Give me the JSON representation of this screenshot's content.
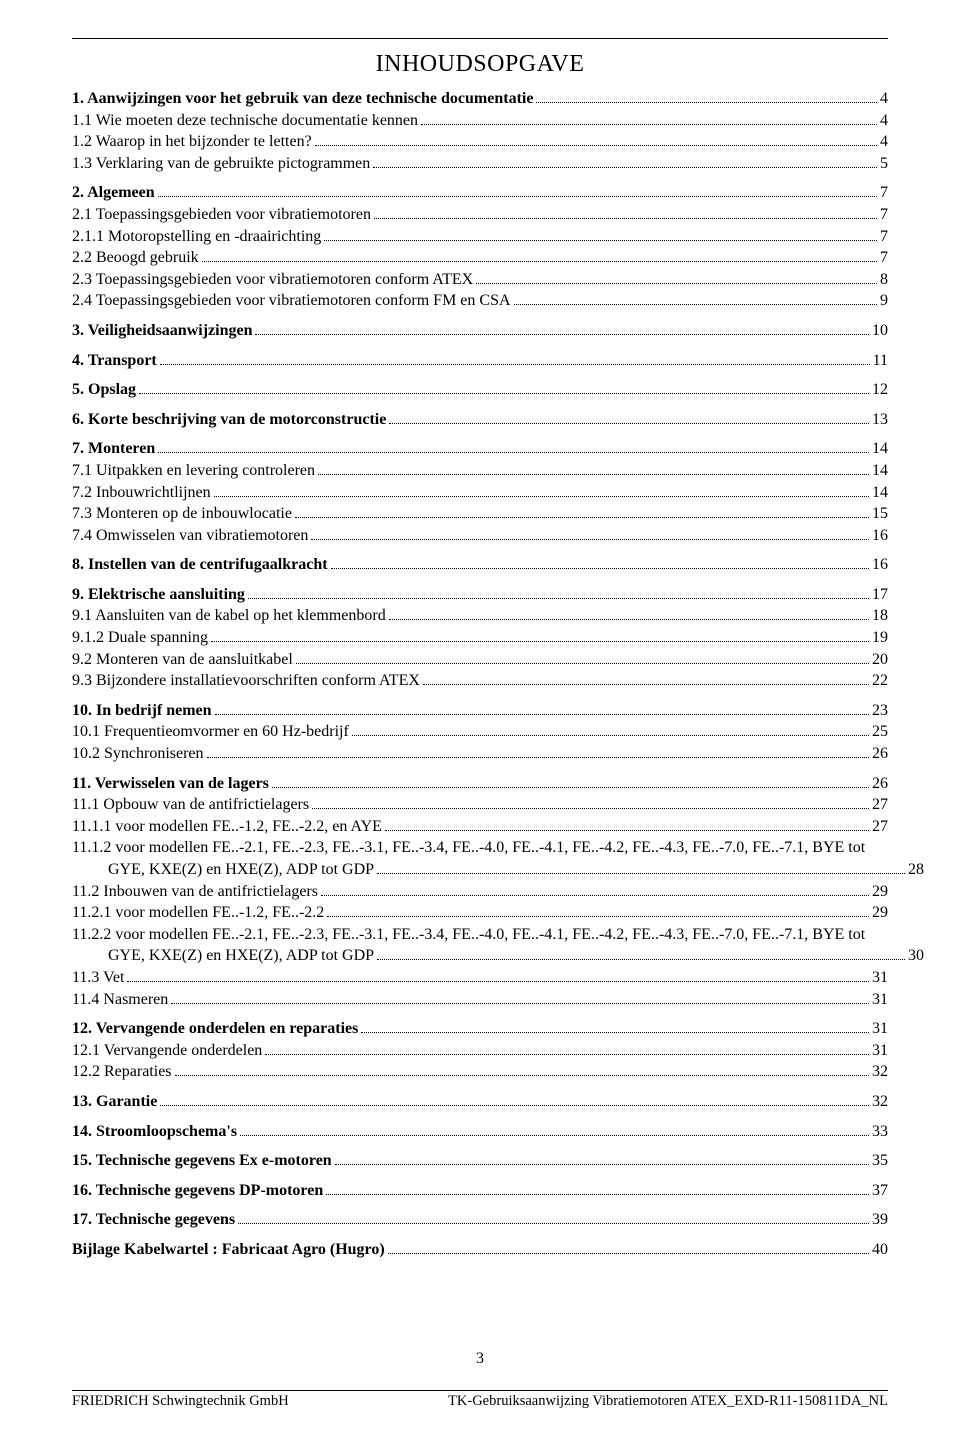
{
  "title": "INHOUDSOPGAVE",
  "page_number": "3",
  "footer_left": "FRIEDRICH Schwingtechnik GmbH",
  "footer_right": "TK-Gebruiksaanwijzing Vibratiemotoren ATEX_EXD-R11-150811DA_NL",
  "entries": [
    {
      "label": "1. Aanwijzingen voor het gebruik van deze technische documentatie",
      "page": "4",
      "bold": true,
      "indent": 0,
      "gap": false
    },
    {
      "label": "1.1 Wie moeten deze technische documentatie kennen",
      "page": "4",
      "bold": false,
      "indent": 0,
      "gap": false
    },
    {
      "label": "1.2 Waarop in het bijzonder te letten?",
      "page": "4",
      "bold": false,
      "indent": 0,
      "gap": false
    },
    {
      "label": "1.3 Verklaring van de gebruikte pictogrammen",
      "page": "5",
      "bold": false,
      "indent": 0,
      "gap": false
    },
    {
      "label": "2. Algemeen",
      "page": "7",
      "bold": true,
      "indent": 0,
      "gap": true
    },
    {
      "label": "2.1 Toepassingsgebieden voor vibratiemotoren",
      "page": "7",
      "bold": false,
      "indent": 0,
      "gap": false
    },
    {
      "label": "2.1.1 Motoropstelling en -draairichting",
      "page": "7",
      "bold": false,
      "indent": 0,
      "gap": false
    },
    {
      "label": "2.2 Beoogd gebruik",
      "page": "7",
      "bold": false,
      "indent": 0,
      "gap": false
    },
    {
      "label": "2.3 Toepassingsgebieden voor vibratiemotoren conform ATEX",
      "page": "8",
      "bold": false,
      "indent": 0,
      "gap": false
    },
    {
      "label": "2.4 Toepassingsgebieden voor vibratiemotoren conform FM en CSA",
      "page": "9",
      "bold": false,
      "indent": 0,
      "gap": false
    },
    {
      "label": "3. Veiligheidsaanwijzingen",
      "page": "10",
      "bold": true,
      "indent": 0,
      "gap": true
    },
    {
      "label": "4. Transport",
      "page": "11",
      "bold": true,
      "indent": 0,
      "gap": true
    },
    {
      "label": "5. Opslag",
      "page": "12",
      "bold": true,
      "indent": 0,
      "gap": true
    },
    {
      "label": "6. Korte beschrijving van de motorconstructie",
      "page": "13",
      "bold": true,
      "indent": 0,
      "gap": true
    },
    {
      "label": "7. Monteren",
      "page": "14",
      "bold": true,
      "indent": 0,
      "gap": true
    },
    {
      "label": "7.1 Uitpakken en levering controleren",
      "page": "14",
      "bold": false,
      "indent": 0,
      "gap": false
    },
    {
      "label": "7.2 Inbouwrichtlijnen",
      "page": "14",
      "bold": false,
      "indent": 0,
      "gap": false
    },
    {
      "label": "7.3 Monteren op de inbouwlocatie",
      "page": "15",
      "bold": false,
      "indent": 0,
      "gap": false
    },
    {
      "label": "7.4 Omwisselen van vibratiemotoren",
      "page": "16",
      "bold": false,
      "indent": 0,
      "gap": false
    },
    {
      "label": "8. Instellen van de centrifugaalkracht",
      "page": "16",
      "bold": true,
      "indent": 0,
      "gap": true
    },
    {
      "label": "9. Elektrische aansluiting",
      "page": "17",
      "bold": true,
      "indent": 0,
      "gap": true
    },
    {
      "label": "9.1 Aansluiten van de kabel op het klemmenbord",
      "page": "18",
      "bold": false,
      "indent": 0,
      "gap": false
    },
    {
      "label": "9.1.2 Duale spanning",
      "page": "19",
      "bold": false,
      "indent": 0,
      "gap": false
    },
    {
      "label": "9.2 Monteren van de aansluitkabel",
      "page": "20",
      "bold": false,
      "indent": 0,
      "gap": false
    },
    {
      "label": "9.3 Bijzondere installatievoorschriften conform ATEX",
      "page": "22",
      "bold": false,
      "indent": 0,
      "gap": false
    },
    {
      "label": "10. In bedrijf nemen",
      "page": "23",
      "bold": true,
      "indent": 0,
      "gap": true
    },
    {
      "label": "10.1 Frequentieomvormer en 60 Hz-bedrijf",
      "page": "25",
      "bold": false,
      "indent": 0,
      "gap": false
    },
    {
      "label": "10.2   Synchroniseren",
      "page": "26",
      "bold": false,
      "indent": 0,
      "gap": false
    },
    {
      "label": "11. Verwisselen van de lagers",
      "page": "26",
      "bold": true,
      "indent": 0,
      "gap": true
    },
    {
      "label": "11.1 Opbouw van de antifrictielagers",
      "page": "27",
      "bold": false,
      "indent": 0,
      "gap": false
    },
    {
      "label": "11.1.1 voor modellen FE..-1.2, FE..-2.2, en AYE",
      "page": "27",
      "bold": false,
      "indent": 0,
      "gap": false
    },
    {
      "label": "11.1.2 voor modellen FE..-2.1, FE..-2.3, FE..-3.1, FE..-3.4, FE..-4.0, FE..-4.1, FE..-4.2, FE..-4.3, FE..-7.0, FE..-7.1, BYE tot",
      "wrap": "GYE, KXE(Z) en HXE(Z), ADP tot GDP",
      "page": "28",
      "bold": false,
      "indent": 0,
      "gap": false
    },
    {
      "label": "11.2 Inbouwen van de antifrictielagers",
      "page": "29",
      "bold": false,
      "indent": 0,
      "gap": false
    },
    {
      "label": "11.2.1 voor modellen FE..-1.2, FE..-2.2",
      "page": "29",
      "bold": false,
      "indent": 0,
      "gap": false
    },
    {
      "label": "11.2.2 voor modellen FE..-2.1, FE..-2.3, FE..-3.1, FE..-3.4, FE..-4.0, FE..-4.1, FE..-4.2, FE..-4.3, FE..-7.0, FE..-7.1, BYE tot",
      "wrap": "GYE, KXE(Z) en HXE(Z), ADP tot GDP",
      "page": "30",
      "bold": false,
      "indent": 0,
      "gap": false
    },
    {
      "label": "11.3 Vet",
      "page": "31",
      "bold": false,
      "indent": 0,
      "gap": false
    },
    {
      "label": "11.4 Nasmeren",
      "page": "31",
      "bold": false,
      "indent": 0,
      "gap": false
    },
    {
      "label": "12. Vervangende onderdelen en reparaties",
      "page": "31",
      "bold": true,
      "indent": 0,
      "gap": true
    },
    {
      "label": "12.1 Vervangende onderdelen",
      "page": "31",
      "bold": false,
      "indent": 0,
      "gap": false
    },
    {
      "label": "12.2 Reparaties",
      "page": "32",
      "bold": false,
      "indent": 0,
      "gap": false
    },
    {
      "label": "13. Garantie",
      "page": "32",
      "bold": true,
      "indent": 0,
      "gap": true
    },
    {
      "label": "14. Stroomloopschema's",
      "page": "33",
      "bold": true,
      "indent": 0,
      "gap": true
    },
    {
      "label": "15. Technische gegevens Ex e-motoren",
      "page": "35",
      "bold": true,
      "indent": 0,
      "gap": true
    },
    {
      "label": "16. Technische gegevens DP-motoren",
      "page": "37",
      "bold": true,
      "indent": 0,
      "gap": true
    },
    {
      "label": "17. Technische gegevens",
      "page": "39",
      "bold": true,
      "indent": 0,
      "gap": true
    },
    {
      "label": "Bijlage Kabelwartel : Fabricaat Agro (Hugro)",
      "page": "40",
      "bold": true,
      "indent": 0,
      "gap": true
    }
  ]
}
